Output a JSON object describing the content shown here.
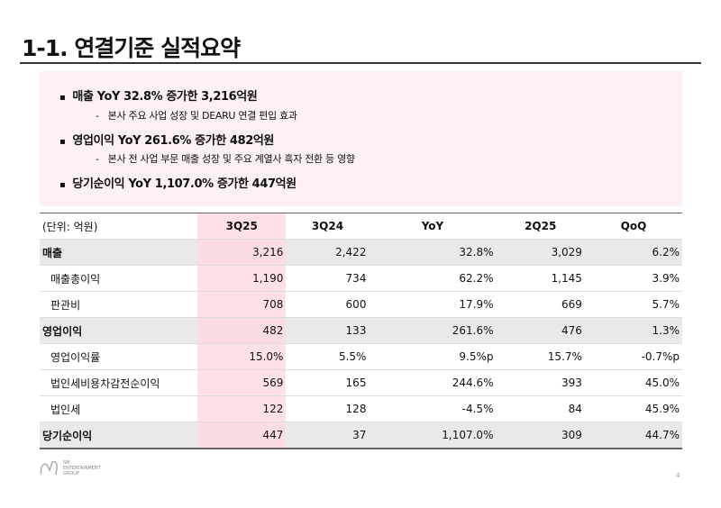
{
  "title": "1-1. 연결기준 실적요약",
  "summary": {
    "b1": "매출 YoY 32.8% 증가한 3,216억원",
    "s1": "본사  주요 사업 성장 및 DEARU 연결 편입 효과",
    "b2": "영업이익 YoY 261.6% 증가한 482억원",
    "s2": "본사 전 사업 부문 매출 성장 및 주요 계열사 흑자 전환 등 영향",
    "b3": "당기순이익 YoY 1,107.0% 증가한 447억원"
  },
  "table": {
    "headers": [
      "(단위: 억원)",
      "3Q25",
      "3Q24",
      "YoY",
      "2Q25",
      "QoQ"
    ],
    "rows": [
      [
        "매출",
        "3,216",
        "2,422",
        "32.8%",
        "3,029",
        "6.2%"
      ],
      [
        "매출총이익",
        "1,190",
        "734",
        "62.2%",
        "1,145",
        "3.9%"
      ],
      [
        "판관비",
        "708",
        "600",
        "17.9%",
        "669",
        "5.7%"
      ],
      [
        "영업이익",
        "482",
        "133",
        "261.6%",
        "476",
        "1.3%"
      ],
      [
        "영업이익률",
        "15.0%",
        "5.5%",
        "9.5%p",
        "15.7%",
        "-0.7%p"
      ],
      [
        "법인세비용차감전순이익",
        "569",
        "165",
        "244.6%",
        "393",
        "45.0%"
      ],
      [
        "법인세",
        "122",
        "128",
        "-4.5%",
        "84",
        "45.9%"
      ],
      [
        "당기순이익",
        "447",
        "37",
        "1,107.0%",
        "309",
        "44.7%"
      ]
    ]
  },
  "footer": {
    "logo": "SM ENTERTAINMENT GROUP",
    "page": "4"
  }
}
